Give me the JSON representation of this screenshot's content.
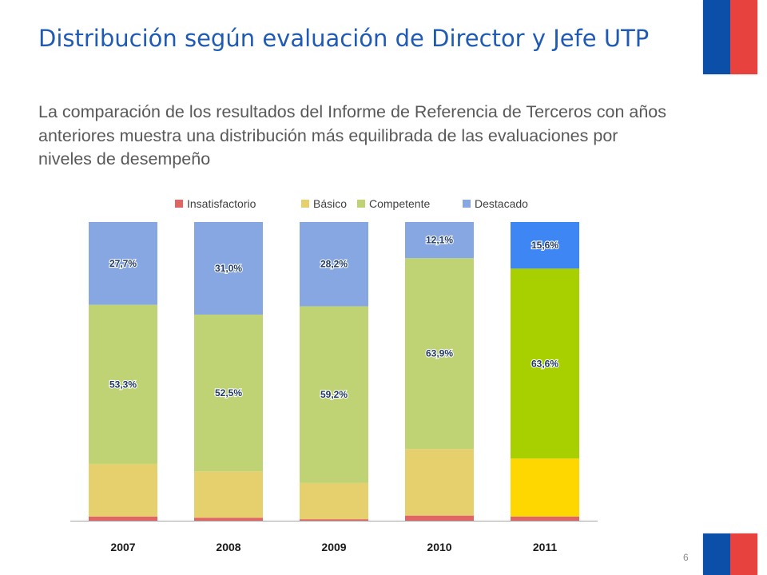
{
  "slide": {
    "title": "Distribución según evaluación de Director y Jefe UTP",
    "subtitle": "La comparación de los resultados del Informe de Referencia de Terceros con años anteriores muestra una distribución más equilibrada de las evaluaciones por niveles de desempeño",
    "page_number": "6",
    "flag_colors": {
      "blue": "#0b4fa8",
      "red": "#e8423f"
    }
  },
  "chart_data": {
    "type": "bar",
    "stacked": true,
    "categories": [
      "2007",
      "2008",
      "2009",
      "2010",
      "2011"
    ],
    "ylim": [
      0,
      100
    ],
    "legend_position": "top",
    "grid": false,
    "series": [
      {
        "name": "Insatisfactorio",
        "values": [
          1.4,
          1.0,
          0.5,
          1.7,
          1.4
        ],
        "labels": [
          "",
          "",
          "",
          "",
          ""
        ],
        "color": "#e06666",
        "highlight_color": "#e06666"
      },
      {
        "name": "Básico",
        "values": [
          17.6,
          15.5,
          12.1,
          22.3,
          19.4
        ],
        "labels": [
          "",
          "",
          "",
          "",
          ""
        ],
        "color": "#e6cf6d",
        "highlight_color": "#ffd700"
      },
      {
        "name": "Competente",
        "values": [
          53.3,
          52.5,
          59.2,
          63.9,
          63.6
        ],
        "labels": [
          "53,3%",
          "52,5%",
          "59,2%",
          "63,9%",
          "63,6%"
        ],
        "color": "#bfd375",
        "highlight_color": "#a8d000"
      },
      {
        "name": "Destacado",
        "values": [
          27.7,
          31.0,
          28.2,
          12.1,
          15.6
        ],
        "labels": [
          "27,7%",
          "31,0%",
          "28,2%",
          "12,1%",
          "15,6%"
        ],
        "color": "#87a7e3",
        "highlight_color": "#3f86f5"
      }
    ],
    "highlighted_category": "2011"
  }
}
